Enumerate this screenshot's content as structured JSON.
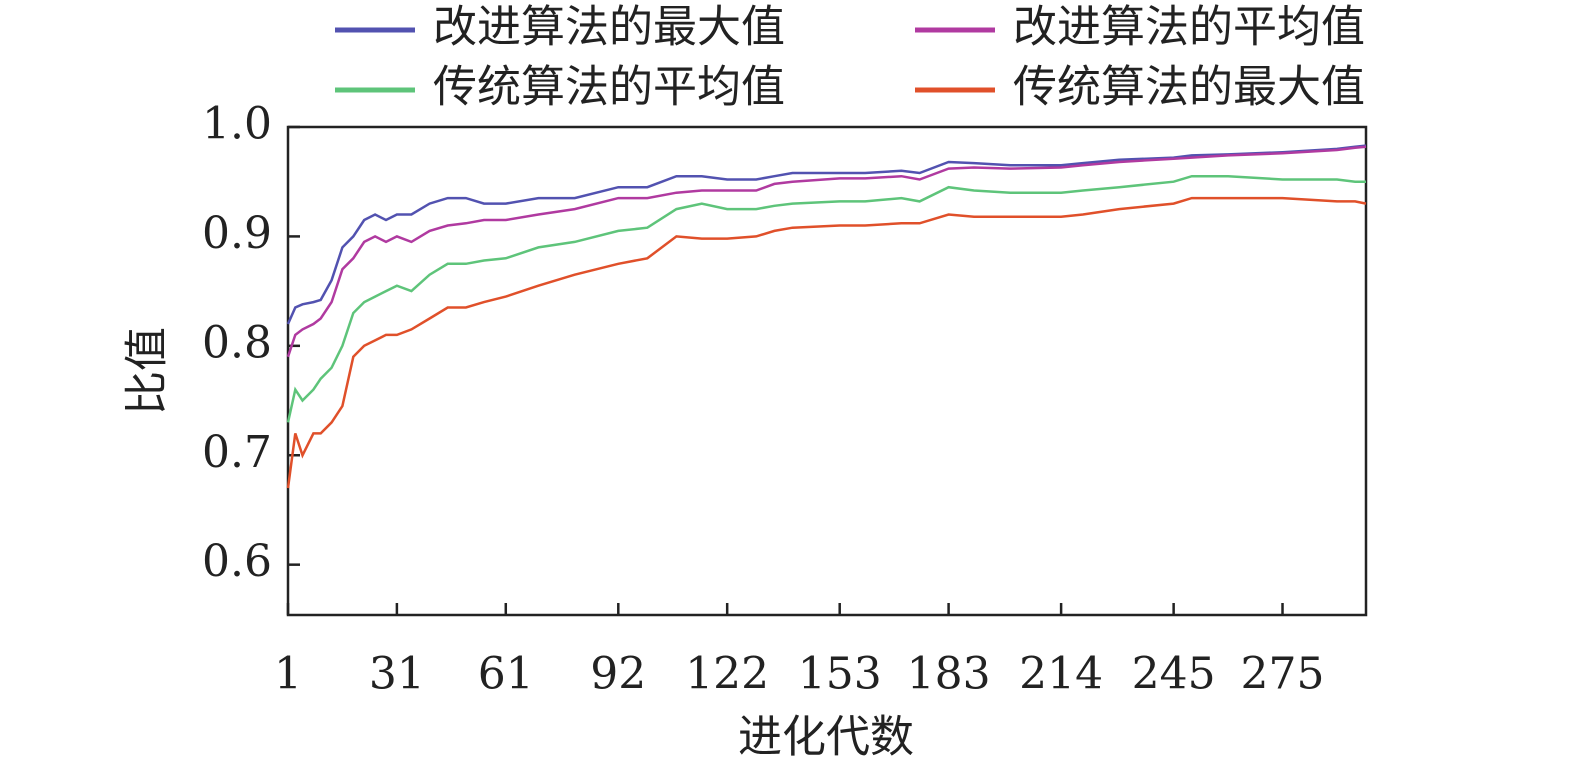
{
  "chart_data": {
    "type": "line",
    "x_label": "进化代数",
    "y_label": "比值",
    "x": [
      1,
      3,
      5,
      8,
      10,
      13,
      16,
      19,
      22,
      25,
      28,
      31,
      35,
      40,
      45,
      50,
      55,
      61,
      70,
      80,
      92,
      100,
      108,
      115,
      122,
      130,
      135,
      140,
      153,
      160,
      170,
      175,
      183,
      190,
      200,
      214,
      220,
      230,
      245,
      250,
      260,
      275,
      290,
      295,
      298
    ],
    "xlim": [
      1,
      298
    ],
    "xticks": [
      1,
      31,
      61,
      92,
      122,
      153,
      183,
      214,
      245,
      275
    ],
    "ylim": [
      0.554,
      1.0
    ],
    "yticks": [
      0.6,
      0.7,
      0.8,
      0.9,
      {
        "value": 1.0,
        "label": "1.0"
      }
    ],
    "legend": "top",
    "series": [
      {
        "name": "改进算法的最大值",
        "color": "#5252b0",
        "values": [
          0.82,
          0.835,
          0.838,
          0.84,
          0.842,
          0.86,
          0.89,
          0.9,
          0.915,
          0.92,
          0.915,
          0.92,
          0.92,
          0.93,
          0.935,
          0.935,
          0.93,
          0.93,
          0.935,
          0.935,
          0.945,
          0.945,
          0.955,
          0.955,
          0.952,
          0.952,
          0.955,
          0.958,
          0.958,
          0.958,
          0.96,
          0.958,
          0.968,
          0.967,
          0.965,
          0.965,
          0.967,
          0.97,
          0.972,
          0.974,
          0.975,
          0.977,
          0.98,
          0.982,
          0.983
        ]
      },
      {
        "name": "改进算法的平均值",
        "color": "#b03aa0",
        "values": [
          0.79,
          0.81,
          0.815,
          0.82,
          0.825,
          0.84,
          0.87,
          0.88,
          0.895,
          0.9,
          0.895,
          0.9,
          0.895,
          0.905,
          0.91,
          0.912,
          0.915,
          0.915,
          0.92,
          0.925,
          0.935,
          0.935,
          0.94,
          0.942,
          0.942,
          0.942,
          0.948,
          0.95,
          0.953,
          0.953,
          0.955,
          0.952,
          0.962,
          0.963,
          0.962,
          0.963,
          0.965,
          0.968,
          0.971,
          0.972,
          0.974,
          0.976,
          0.979,
          0.981,
          0.982
        ]
      },
      {
        "name": "传统算法的平均值",
        "color": "#5ec47a",
        "values": [
          0.73,
          0.76,
          0.75,
          0.76,
          0.77,
          0.78,
          0.8,
          0.83,
          0.84,
          0.845,
          0.85,
          0.855,
          0.85,
          0.865,
          0.875,
          0.875,
          0.878,
          0.88,
          0.89,
          0.895,
          0.905,
          0.908,
          0.925,
          0.93,
          0.925,
          0.925,
          0.928,
          0.93,
          0.932,
          0.932,
          0.935,
          0.932,
          0.945,
          0.942,
          0.94,
          0.94,
          0.942,
          0.945,
          0.95,
          0.955,
          0.955,
          0.952,
          0.952,
          0.95,
          0.95
        ]
      },
      {
        "name": "传统算法的最大值",
        "color": "#e0502a",
        "values": [
          0.67,
          0.72,
          0.7,
          0.72,
          0.72,
          0.73,
          0.745,
          0.79,
          0.8,
          0.805,
          0.81,
          0.81,
          0.815,
          0.825,
          0.835,
          0.835,
          0.84,
          0.845,
          0.855,
          0.865,
          0.875,
          0.88,
          0.9,
          0.898,
          0.898,
          0.9,
          0.905,
          0.908,
          0.91,
          0.91,
          0.912,
          0.912,
          0.92,
          0.918,
          0.918,
          0.918,
          0.92,
          0.925,
          0.93,
          0.935,
          0.935,
          0.935,
          0.932,
          0.932,
          0.93
        ]
      }
    ]
  }
}
